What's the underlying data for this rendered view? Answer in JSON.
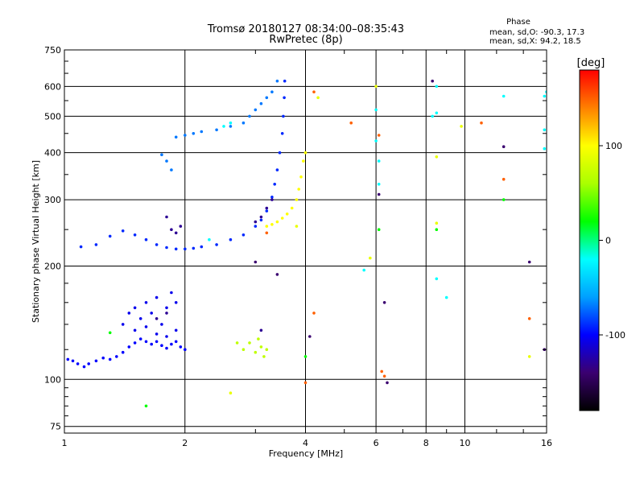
{
  "chart_data": {
    "type": "scatter",
    "title": "Tromsø 20180127 08:34:00–08:35:43",
    "subtitle": "RwPretec (8p)",
    "xlabel": "Frequency [MHz]",
    "ylabel": "Stationary phase Virtual Height [km]",
    "x_scale": "log",
    "y_scale": "log",
    "xlim": [
      1,
      16
    ],
    "ylim": [
      72,
      750
    ],
    "x_ticks": [
      1,
      2,
      4,
      6,
      8,
      10,
      16
    ],
    "y_ticks": [
      75,
      100,
      200,
      300,
      400,
      500,
      600,
      750
    ],
    "grid": true,
    "phase_info": {
      "title": "Phase",
      "line_o": "mean, sd,O: -90.3, 17.3",
      "line_x": "mean, sd,X:  94.2, 18.5"
    },
    "colorbar": {
      "label": "[deg]",
      "min": -180,
      "max": 180,
      "ticks": [
        100,
        0,
        -100
      ],
      "colors": [
        "#000000",
        "#3b0070",
        "#0000ff",
        "#00a0ff",
        "#00ffff",
        "#00ff00",
        "#aaff00",
        "#ffff00",
        "#ff8000",
        "#ff0000"
      ]
    },
    "series": [
      {
        "phase": -100,
        "points": [
          [
            1.02,
            113
          ],
          [
            1.05,
            112
          ],
          [
            1.08,
            110
          ],
          [
            1.12,
            108
          ],
          [
            1.15,
            110
          ],
          [
            1.2,
            112
          ],
          [
            1.25,
            114
          ],
          [
            1.3,
            113
          ],
          [
            1.35,
            115
          ],
          [
            1.4,
            118
          ],
          [
            1.45,
            122
          ],
          [
            1.5,
            125
          ],
          [
            1.55,
            128
          ],
          [
            1.6,
            126
          ],
          [
            1.65,
            124
          ],
          [
            1.7,
            126
          ],
          [
            1.75,
            123
          ],
          [
            1.8,
            121
          ],
          [
            1.85,
            124
          ],
          [
            1.9,
            126
          ],
          [
            1.95,
            122
          ],
          [
            2.0,
            120
          ]
        ]
      },
      {
        "phase": -105,
        "points": [
          [
            1.4,
            140
          ],
          [
            1.45,
            150
          ],
          [
            1.5,
            155
          ],
          [
            1.55,
            145
          ],
          [
            1.6,
            160
          ],
          [
            1.65,
            150
          ],
          [
            1.7,
            165
          ],
          [
            1.75,
            140
          ],
          [
            1.8,
            155
          ],
          [
            1.85,
            170
          ],
          [
            1.9,
            160
          ],
          [
            1.5,
            135
          ],
          [
            1.6,
            138
          ],
          [
            1.7,
            132
          ],
          [
            1.8,
            130
          ],
          [
            1.9,
            135
          ]
        ]
      },
      {
        "phase": -90,
        "points": [
          [
            1.1,
            225
          ],
          [
            1.2,
            228
          ],
          [
            1.3,
            240
          ],
          [
            1.4,
            248
          ],
          [
            1.5,
            242
          ],
          [
            1.6,
            235
          ],
          [
            1.7,
            228
          ],
          [
            1.8,
            224
          ],
          [
            1.9,
            222
          ],
          [
            2.0,
            222
          ],
          [
            2.1,
            223
          ],
          [
            2.2,
            225
          ],
          [
            2.4,
            228
          ],
          [
            2.6,
            235
          ],
          [
            2.8,
            242
          ],
          [
            3.0,
            255
          ],
          [
            3.1,
            265
          ],
          [
            3.2,
            280
          ],
          [
            3.3,
            305
          ],
          [
            3.35,
            330
          ],
          [
            3.4,
            360
          ],
          [
            3.45,
            400
          ],
          [
            3.5,
            450
          ],
          [
            3.52,
            500
          ],
          [
            3.54,
            560
          ],
          [
            3.55,
            620
          ]
        ]
      },
      {
        "phase": -70,
        "points": [
          [
            1.75,
            395
          ],
          [
            1.8,
            380
          ],
          [
            1.85,
            360
          ],
          [
            1.9,
            440
          ],
          [
            2.0,
            445
          ],
          [
            2.1,
            450
          ],
          [
            2.2,
            455
          ],
          [
            2.4,
            460
          ],
          [
            2.6,
            470
          ],
          [
            2.8,
            480
          ],
          [
            2.9,
            500
          ],
          [
            3.0,
            520
          ],
          [
            3.1,
            540
          ],
          [
            3.2,
            560
          ],
          [
            3.3,
            580
          ],
          [
            3.4,
            620
          ]
        ]
      },
      {
        "phase": -130,
        "points": [
          [
            1.8,
            270
          ],
          [
            1.85,
            250
          ],
          [
            1.9,
            245
          ],
          [
            1.95,
            255
          ],
          [
            3.0,
            262
          ],
          [
            3.1,
            270
          ],
          [
            3.2,
            285
          ],
          [
            3.3,
            300
          ],
          [
            3.1,
            135
          ],
          [
            1.7,
            145
          ],
          [
            1.8,
            150
          ]
        ]
      },
      {
        "phase": 100,
        "points": [
          [
            3.2,
            255
          ],
          [
            3.3,
            258
          ],
          [
            3.4,
            262
          ],
          [
            3.5,
            268
          ],
          [
            3.6,
            275
          ],
          [
            3.7,
            285
          ],
          [
            3.8,
            300
          ],
          [
            3.85,
            320
          ],
          [
            3.9,
            345
          ],
          [
            3.95,
            380
          ],
          [
            4.0,
            400
          ]
        ]
      },
      {
        "phase": 70,
        "points": [
          [
            2.7,
            125
          ],
          [
            2.8,
            120
          ],
          [
            2.9,
            125
          ],
          [
            3.0,
            118
          ],
          [
            3.1,
            122
          ],
          [
            3.2,
            120
          ],
          [
            3.15,
            115
          ],
          [
            3.05,
            128
          ]
        ]
      },
      {
        "phase": 150,
        "points": [
          [
            4.2,
            580
          ],
          [
            5.2,
            480
          ],
          [
            6.1,
            445
          ],
          [
            4.2,
            150
          ],
          [
            4.0,
            98
          ],
          [
            6.2,
            105
          ],
          [
            6.3,
            102
          ],
          [
            11.0,
            480
          ],
          [
            12.5,
            340
          ],
          [
            14.5,
            145
          ],
          [
            3.2,
            245
          ]
        ]
      },
      {
        "phase": 90,
        "points": [
          [
            4.3,
            560
          ],
          [
            6.0,
            600
          ],
          [
            8.5,
            390
          ],
          [
            8.5,
            260
          ],
          [
            5.8,
            210
          ],
          [
            2.6,
            92
          ],
          [
            14.5,
            115
          ],
          [
            9.8,
            470
          ],
          [
            3.8,
            255
          ]
        ]
      },
      {
        "phase": 20,
        "points": [
          [
            1.6,
            85
          ],
          [
            1.3,
            133
          ],
          [
            6.1,
            250
          ],
          [
            8.5,
            250
          ],
          [
            4.0,
            115
          ],
          [
            12.5,
            300
          ]
        ]
      },
      {
        "phase": -20,
        "points": [
          [
            2.3,
            235
          ],
          [
            2.5,
            470
          ],
          [
            2.6,
            480
          ],
          [
            6.0,
            520
          ],
          [
            6.0,
            430
          ],
          [
            8.5,
            510
          ],
          [
            8.5,
            600
          ],
          [
            12.5,
            565
          ],
          [
            15.8,
            565
          ],
          [
            15.8,
            460
          ],
          [
            5.6,
            195
          ],
          [
            8.5,
            185
          ],
          [
            9.0,
            165
          ],
          [
            6.1,
            380
          ],
          [
            6.1,
            330
          ],
          [
            15.8,
            410
          ],
          [
            16.0,
            580
          ],
          [
            8.3,
            500
          ]
        ]
      },
      {
        "phase": -140,
        "points": [
          [
            4.1,
            130
          ],
          [
            6.3,
            160
          ],
          [
            6.4,
            98
          ],
          [
            8.3,
            620
          ],
          [
            12.5,
            415
          ],
          [
            14.5,
            205
          ],
          [
            15.8,
            120
          ],
          [
            3.0,
            205
          ],
          [
            3.4,
            190
          ],
          [
            6.1,
            310
          ]
        ]
      }
    ]
  }
}
